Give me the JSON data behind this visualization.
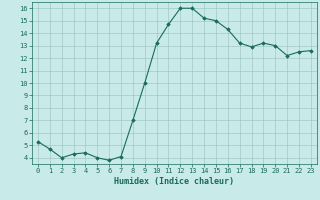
{
  "x": [
    0,
    1,
    2,
    3,
    4,
    5,
    6,
    7,
    8,
    9,
    10,
    11,
    12,
    13,
    14,
    15,
    16,
    17,
    18,
    19,
    20,
    21,
    22,
    23
  ],
  "y": [
    5.3,
    4.7,
    4.0,
    4.3,
    4.4,
    4.0,
    3.8,
    4.1,
    7.0,
    10.0,
    13.2,
    14.7,
    16.0,
    16.0,
    15.2,
    15.0,
    14.3,
    13.2,
    12.9,
    13.2,
    13.0,
    12.2,
    12.5,
    12.6
  ],
  "line_color": "#1a6b5a",
  "marker": "D",
  "marker_size": 1.8,
  "line_width": 0.8,
  "bg_color": "#c8eae8",
  "grid_color": "#9bbfbc",
  "xlabel": "Humidex (Indice chaleur)",
  "xlabel_fontsize": 6.0,
  "xlabel_color": "#1a6b5a",
  "ylim": [
    3.5,
    16.5
  ],
  "xlim": [
    -0.5,
    23.5
  ],
  "yticks": [
    4,
    5,
    6,
    7,
    8,
    9,
    10,
    11,
    12,
    13,
    14,
    15,
    16
  ],
  "xticks": [
    0,
    1,
    2,
    3,
    4,
    5,
    6,
    7,
    8,
    9,
    10,
    11,
    12,
    13,
    14,
    15,
    16,
    17,
    18,
    19,
    20,
    21,
    22,
    23
  ],
  "tick_fontsize": 5.0,
  "tick_color": "#1a6b5a"
}
